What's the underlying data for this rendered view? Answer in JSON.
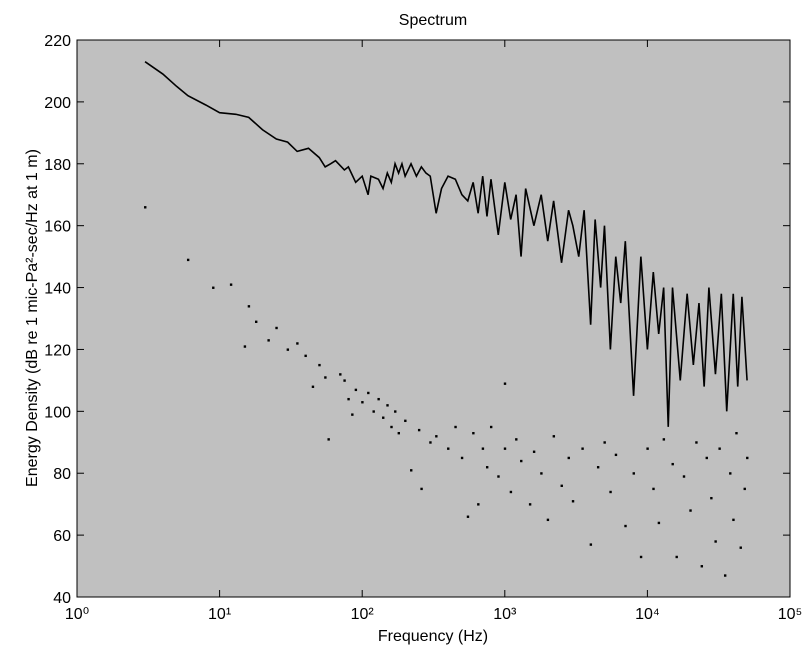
{
  "chart_data": {
    "type": "line",
    "title": "Spectrum",
    "x_label": "Frequency (Hz)",
    "y_label": "Energy Density (dB re 1 mic-Pa²-sec/Hz at 1 m)",
    "xscale": "log",
    "xlim": [
      1,
      100000
    ],
    "ylim": [
      40,
      220
    ],
    "xticks": [
      {
        "value": 1,
        "label": "10⁰"
      },
      {
        "value": 10,
        "label": "10¹"
      },
      {
        "value": 100,
        "label": "10²"
      },
      {
        "value": 1000,
        "label": "10³"
      },
      {
        "value": 10000,
        "label": "10⁴"
      },
      {
        "value": 100000,
        "label": "10⁵"
      }
    ],
    "yticks": [
      40,
      60,
      80,
      100,
      120,
      140,
      160,
      180,
      200,
      220
    ],
    "background": "#c0c0c0",
    "series": [
      {
        "type": "line",
        "color": "#000000",
        "x": [
          3,
          4,
          5,
          6,
          8,
          10,
          13,
          16,
          20,
          25,
          30,
          35,
          42,
          50,
          55,
          60,
          65,
          75,
          80,
          90,
          100,
          110,
          115,
          130,
          140,
          150,
          160,
          170,
          180,
          190,
          200,
          220,
          240,
          260,
          280,
          300,
          330,
          360,
          400,
          450,
          500,
          550,
          600,
          650,
          700,
          750,
          800,
          900,
          1000,
          1100,
          1200,
          1300,
          1400,
          1600,
          1800,
          2000,
          2200,
          2500,
          2800,
          3000,
          3300,
          3600,
          4000,
          4300,
          4700,
          5000,
          5500,
          6000,
          6500,
          7000,
          8000,
          9000,
          10000,
          11000,
          12000,
          13000,
          14000,
          15000,
          17000,
          19000,
          21000,
          23000,
          25000,
          27000,
          30000,
          33000,
          36000,
          40000,
          43000,
          46000,
          50000
        ],
        "values": [
          213,
          209,
          205,
          202,
          199,
          196.5,
          196,
          195,
          191,
          188,
          187,
          184,
          185,
          182,
          179,
          180,
          181,
          178,
          179,
          174,
          176,
          170,
          176,
          175,
          172,
          177,
          174,
          180,
          177,
          180,
          176,
          180,
          176,
          179,
          177,
          176,
          164,
          172,
          176,
          175,
          170,
          168,
          174,
          164,
          176,
          163,
          175,
          157,
          174,
          162,
          170,
          150,
          172,
          160,
          170,
          155,
          168,
          148,
          165,
          160,
          150,
          165,
          128,
          162,
          140,
          160,
          120,
          150,
          135,
          155,
          105,
          150,
          120,
          145,
          125,
          140,
          95,
          140,
          110,
          138,
          115,
          135,
          108,
          140,
          112,
          138,
          100,
          138,
          108,
          137,
          110
        ]
      },
      {
        "type": "scatter",
        "color": "#000000",
        "x": [
          3,
          6,
          9,
          12,
          15,
          16,
          18,
          22,
          25,
          30,
          35,
          40,
          45,
          50,
          55,
          58,
          70,
          75,
          80,
          85,
          90,
          100,
          110,
          120,
          130,
          140,
          150,
          160,
          170,
          180,
          200,
          220,
          250,
          260,
          300,
          330,
          400,
          450,
          500,
          550,
          600,
          650,
          700,
          750,
          800,
          900,
          1000,
          1000,
          1100,
          1200,
          1300,
          1500,
          1600,
          1800,
          2000,
          2200,
          2500,
          2800,
          3000,
          3500,
          4000,
          4500,
          5000,
          5500,
          6000,
          7000,
          8000,
          9000,
          10000,
          11000,
          12000,
          13000,
          15000,
          16000,
          18000,
          20000,
          22000,
          24000,
          26000,
          28000,
          30000,
          32000,
          35000,
          38000,
          40000,
          42000,
          45000,
          48000,
          50000
        ],
        "values": [
          166,
          149,
          140,
          141,
          121,
          134,
          129,
          123,
          127,
          120,
          122,
          118,
          108,
          115,
          111,
          91,
          112,
          110,
          104,
          99,
          107,
          103,
          106,
          100,
          104,
          98,
          102,
          95,
          100,
          93,
          97,
          81,
          94,
          75,
          90,
          92,
          88,
          95,
          85,
          66,
          93,
          70,
          88,
          82,
          95,
          79,
          109,
          88,
          74,
          91,
          84,
          70,
          87,
          80,
          65,
          92,
          76,
          85,
          71,
          88,
          57,
          82,
          90,
          74,
          86,
          63,
          80,
          53,
          88,
          75,
          64,
          91,
          83,
          53,
          79,
          68,
          90,
          50,
          85,
          72,
          58,
          88,
          47,
          80,
          65,
          93,
          56,
          75,
          85
        ]
      }
    ]
  }
}
